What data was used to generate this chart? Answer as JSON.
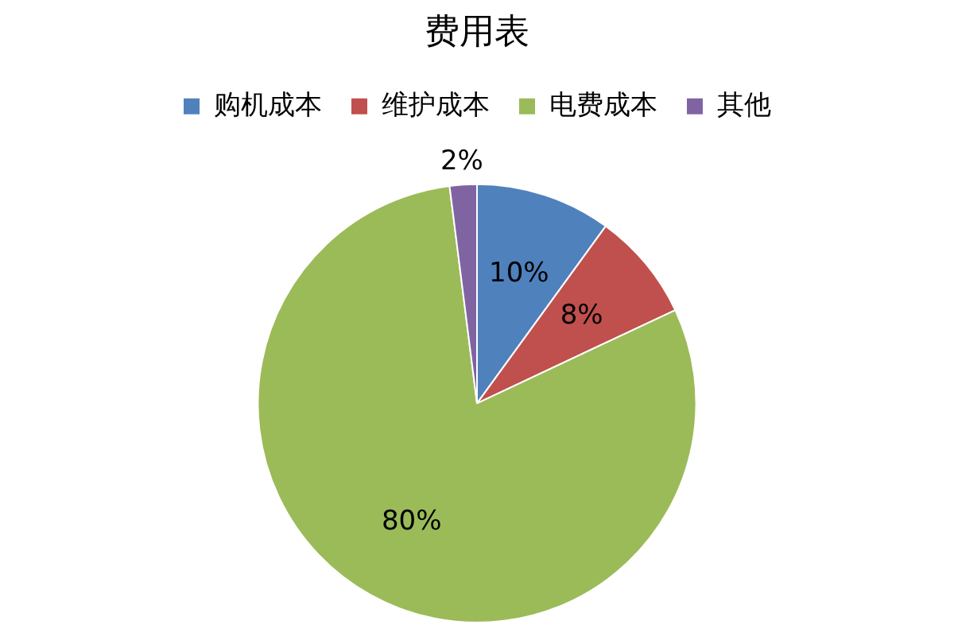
{
  "chart_data": {
    "type": "pie",
    "title": "费用表",
    "categories": [
      "购机成本",
      "维护成本",
      "电费成本",
      "其他"
    ],
    "values": [
      10,
      8,
      80,
      2
    ],
    "colors": [
      "#4f81bd",
      "#c0504d",
      "#9bbb59",
      "#8064a2"
    ],
    "value_labels": [
      "10%",
      "8%",
      "80%",
      "2%"
    ],
    "legend": "top"
  }
}
